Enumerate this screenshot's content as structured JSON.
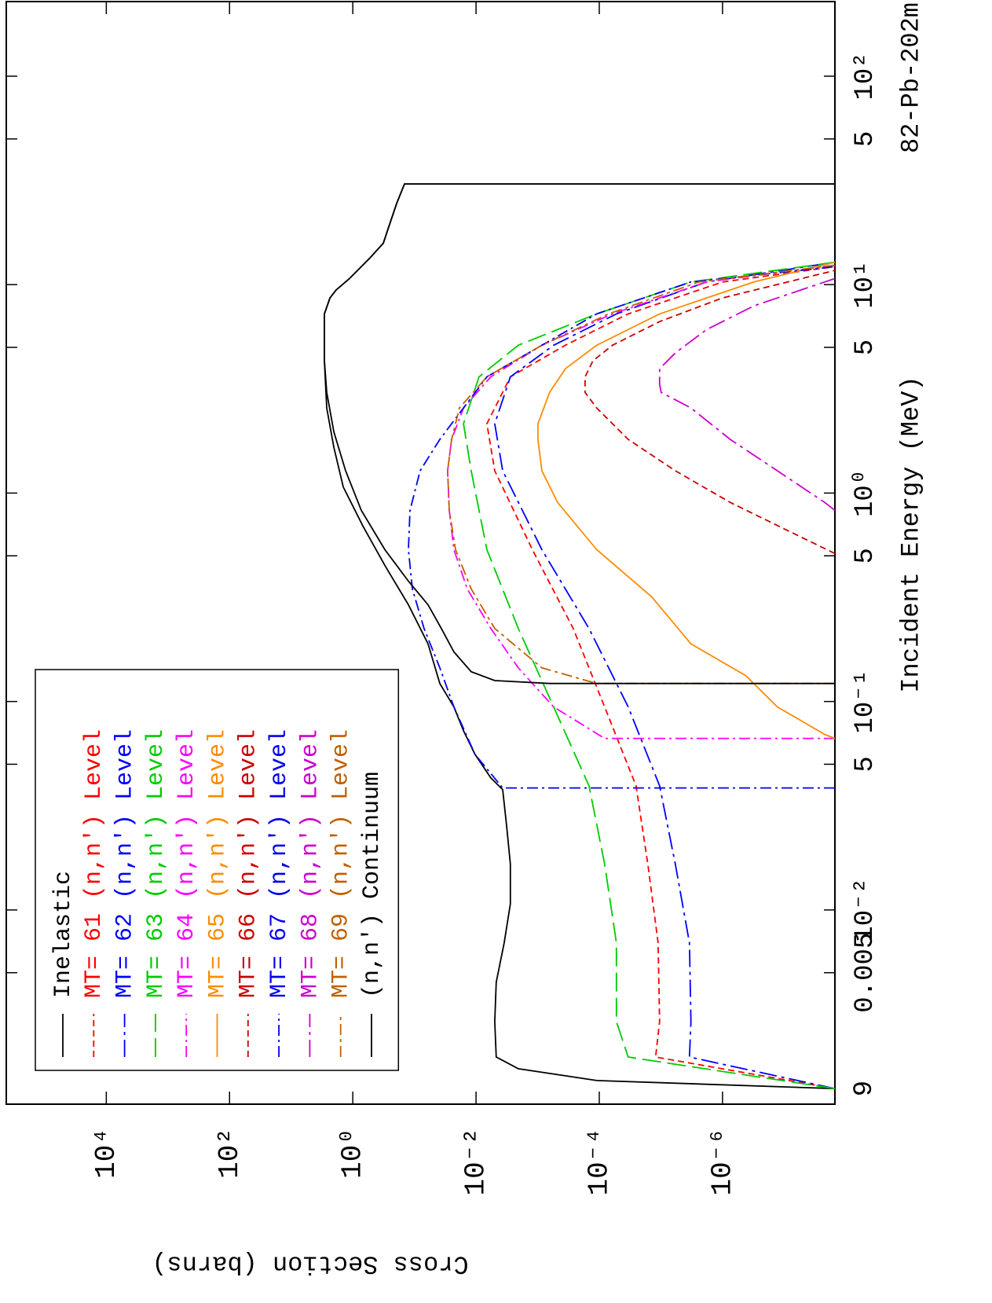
{
  "chart_data": {
    "type": "line",
    "xlabel": "Incident Energy (MeV)",
    "ylabel": "Cross Section (barns)",
    "annotation": "82-Pb-202m",
    "corner_label": "9",
    "log_x": true,
    "log_y": true,
    "xlim": [
      0.00117,
      228
    ],
    "ylim": [
      1.5e-08,
      420000
    ],
    "xticks": [
      0.005,
      {
        "value": 0.01,
        "label": "10⁻²"
      },
      {
        "value": 0.05,
        "label": "5"
      },
      {
        "value": 0.1,
        "label": "10⁻¹"
      },
      {
        "value": 0.5,
        "label": "5"
      },
      {
        "value": 1,
        "label": "10⁰"
      },
      5,
      {
        "value": 10,
        "label": "10¹"
      },
      {
        "value": 50,
        "label": "5"
      },
      {
        "value": 100,
        "label": "10²"
      }
    ],
    "yticks": [
      {
        "value": 10000,
        "label": "10⁴"
      },
      {
        "value": 100,
        "label": "10²"
      },
      {
        "value": 1,
        "label": "10⁰"
      },
      {
        "value": 0.01,
        "label": "10⁻²"
      },
      {
        "value": 0.0001,
        "label": "10⁻⁴"
      },
      {
        "value": 1e-06,
        "label": "10⁻⁶"
      }
    ],
    "legend": "upper left",
    "series": [
      {
        "name": "Inelastic",
        "color": "#000000",
        "dash": "none",
        "x": [
          0.00139,
          0.00152,
          0.00173,
          0.00197,
          0.00291,
          0.0045,
          0.00695,
          0.0107,
          0.0166,
          0.0256,
          0.0378,
          0.043,
          0.0558,
          0.0724,
          0.0942,
          0.122,
          0.189,
          0.291,
          0.45,
          0.695,
          1.07,
          1.66,
          2.56,
          4.31,
          7.24,
          8.63,
          9.42,
          10.7,
          13.3,
          15.8,
          18.9,
          24.5,
          30.4,
          30.4
        ],
        "values": [
          1.5e-08,
          0.00011,
          0.00206,
          0.0047,
          0.00497,
          0.0047,
          0.0035,
          0.00277,
          0.00277,
          0.0032,
          0.0037,
          0.00575,
          0.0104,
          0.016,
          0.0229,
          0.0387,
          0.06,
          0.125,
          0.302,
          0.687,
          1.43,
          2.03,
          2.65,
          2.89,
          2.89,
          2.35,
          1.86,
          1.13,
          0.543,
          0.32,
          0.261,
          0.194,
          0.145,
          1.5e-08
        ]
      },
      {
        "name": "MT= 61 (n,n') Level",
        "color": "#ff0000",
        "dash": "8,5",
        "x": [
          0.00139,
          0.00197,
          0.00291,
          0.00695,
          0.0166,
          0.0394,
          0.0942,
          0.224,
          0.535,
          1.28,
          2.15,
          3.61,
          5.12,
          7.24,
          10.3,
          12.2
        ],
        "values": [
          1.5e-08,
          1.22e-05,
          1.05e-05,
          1.11e-05,
          1.63e-05,
          2.53e-05,
          8.2e-05,
          0.000265,
          0.00122,
          0.00497,
          0.00667,
          0.00277,
          0.000355,
          3.4e-05,
          1e-06,
          1.5e-08
        ]
      },
      {
        "name": "MT= 62 (n,n') Level",
        "color": "#0000ff",
        "dash": "22,6,4,6",
        "x": [
          0.00139,
          0.00197,
          0.00291,
          0.00695,
          0.0166,
          0.0394,
          0.0942,
          0.224,
          0.535,
          1.28,
          2.15,
          3.61,
          5.12,
          7.24,
          10.3,
          12.8
        ],
        "values": [
          1.5e-08,
          3.44e-06,
          3.25e-06,
          3.44e-06,
          5.83e-06,
          1.05e-05,
          3.4e-05,
          0.000147,
          0.000855,
          0.0037,
          0.00497,
          0.00277,
          0.00055,
          5.27e-05,
          1.81e-06,
          1.5e-08
        ]
      },
      {
        "name": "MT= 63 (n,n') Level",
        "color": "#00cc00",
        "dash": "24,8",
        "x": [
          0.00139,
          0.00197,
          0.00291,
          0.00695,
          0.0166,
          0.0394,
          0.0942,
          0.224,
          0.535,
          1.28,
          2.15,
          3.61,
          5.12,
          7.24,
          10.3,
          12.8
        ],
        "values": [
          1.5e-08,
          3.4e-05,
          5.27e-05,
          5.27e-05,
          8.2e-05,
          0.000147,
          0.00055,
          0.00206,
          0.00667,
          0.012,
          0.016,
          0.00893,
          0.00206,
          0.00011,
          3.25e-06,
          1.5e-08
        ]
      },
      {
        "name": "MT= 64 (n,n') Level",
        "color": "#ff00ff",
        "dash": "14,5,3,5",
        "x": [
          0.0665,
          0.0665,
          0.0942,
          0.145,
          0.224,
          0.347,
          0.535,
          0.826,
          1.28,
          1.81,
          2.56,
          3.61,
          5.12,
          7.24,
          10.3,
          12.4
        ],
        "values": [
          1.5e-08,
          8.2e-05,
          0.00055,
          0.00206,
          0.00575,
          0.0139,
          0.0229,
          0.0272,
          0.0289,
          0.0249,
          0.016,
          0.00575,
          0.000855,
          6.1e-05,
          1.81e-06,
          1.5e-08
        ]
      },
      {
        "name": "MT= 65 (n,n') Level",
        "color": "#ff8c00",
        "dash": "none",
        "x": [
          0.0665,
          0.0695,
          0.0942,
          0.133,
          0.189,
          0.318,
          0.535,
          0.902,
          1.28,
          1.81,
          2.15,
          3.04,
          3.95,
          5.12,
          7.24,
          10.3,
          12.8
        ],
        "values": [
          1.5e-08,
          2.2e-08,
          1.29e-07,
          4.17e-07,
          3.25e-06,
          1.41e-05,
          0.00011,
          0.000475,
          0.000855,
          0.00099,
          0.00099,
          0.00064,
          0.000355,
          0.00011,
          1.05e-05,
          3.1e-07,
          1.5e-08
        ]
      },
      {
        "name": "MT= 66 (n,n') Level",
        "color": "#cc0000",
        "dash": "8,5",
        "x": [
          0.513,
          0.637,
          0.902,
          1.28,
          1.81,
          2.56,
          3.04,
          3.61,
          4.31,
          5.12,
          6.65,
          8.63,
          11.7
        ],
        "values": [
          1.5e-08,
          6.8e-08,
          7.5e-07,
          5.83e-06,
          3.4e-05,
          0.00011,
          0.00017,
          0.00017,
          0.000127,
          6.1e-05,
          1.05e-05,
          1e-06,
          1.5e-08
        ]
      },
      {
        "name": "MT= 67 (n,n') Level",
        "color": "#0000ee",
        "dash": "14,5,3,5",
        "x": [
          0.0385,
          0.0385,
          0.0558,
          0.0942,
          0.145,
          0.224,
          0.347,
          0.535,
          0.826,
          1.28,
          1.81,
          2.56,
          3.61,
          5.12,
          7.24,
          10.3,
          12.2
        ],
        "values": [
          1.5e-08,
          0.0037,
          0.0104,
          0.0229,
          0.0387,
          0.0697,
          0.108,
          0.125,
          0.118,
          0.0807,
          0.0387,
          0.016,
          0.00667,
          0.000855,
          0.00011,
          3.25e-06,
          1.5e-08
        ]
      },
      {
        "name": "MT= 68 (n,n') Level",
        "color": "#cc00cc",
        "dash": "22,6,4,6",
        "x": [
          0.826,
          0.902,
          1.28,
          1.81,
          2.56,
          3.04,
          3.32,
          3.95,
          4.7,
          6.09,
          7.91,
          10.7
        ],
        "values": [
          1.5e-08,
          2.2e-08,
          1.29e-07,
          7.5e-07,
          3.25e-06,
          9.9e-06,
          1.05e-05,
          1.05e-05,
          5.83e-06,
          1.81e-06,
          3.1e-07,
          1.5e-08
        ]
      },
      {
        "name": "MT= 69 (n,n') Level",
        "color": "#c06000",
        "dash": "14,5,4,5",
        "x": [
          0.122,
          0.122,
          0.145,
          0.224,
          0.347,
          0.535,
          0.826,
          1.28,
          1.81,
          2.56,
          3.61,
          5.12,
          7.24,
          10.3,
          12.4
        ],
        "values": [
          1.5e-08,
          0.00011,
          0.000855,
          0.00497,
          0.012,
          0.0215,
          0.0272,
          0.0289,
          0.0249,
          0.0186,
          0.00667,
          0.000855,
          7.06e-05,
          2.42e-06,
          1.5e-08
        ]
      },
      {
        "name": "(n,n') Continuum",
        "color": "#000000",
        "dash": "none",
        "x": [
          0.122,
          0.122,
          0.126,
          0.139,
          0.173,
          0.224,
          0.291,
          0.378,
          0.535,
          0.826,
          1.28,
          1.97,
          3.04,
          4.31,
          7.24,
          8.63,
          9.42,
          10.7,
          13.3,
          15.8,
          18.9,
          24.5,
          30.4,
          30.4
        ],
        "values": [
          1.5e-08,
          0.00064,
          0.00497,
          0.012,
          0.0229,
          0.0366,
          0.06,
          0.125,
          0.302,
          0.728,
          1.31,
          2.03,
          2.65,
          2.89,
          2.89,
          2.35,
          1.86,
          1.13,
          0.543,
          0.32,
          0.261,
          0.194,
          0.145,
          1.5e-08
        ]
      }
    ]
  }
}
